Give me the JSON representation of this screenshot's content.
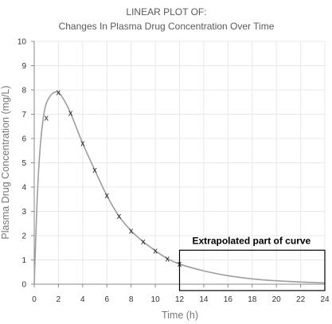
{
  "chart_data": {
    "type": "line",
    "title": "LINEAR PLOT OF:",
    "subtitle": "Changes In Plasma Drug Concentration Over Time",
    "xlabel": "Time (h)",
    "ylabel": "Plasma Drug Concentration (mg/L)",
    "xlim": [
      0,
      24
    ],
    "ylim": [
      0,
      10
    ],
    "xticks": [
      0,
      2,
      4,
      6,
      8,
      10,
      12,
      14,
      16,
      18,
      20,
      22,
      24
    ],
    "yticks": [
      0,
      1,
      2,
      3,
      4,
      5,
      6,
      7,
      8,
      9,
      10
    ],
    "grid": true,
    "series": [
      {
        "kind": "observed",
        "marker": "x",
        "x": [
          1,
          2,
          3,
          4,
          5,
          6,
          7,
          8,
          9,
          10,
          11,
          12
        ],
        "y": [
          6.85,
          7.9,
          7.05,
          5.8,
          4.7,
          3.65,
          2.8,
          2.2,
          1.75,
          1.38,
          1.05,
          0.83
        ]
      },
      {
        "kind": "fitted-curve",
        "x": [
          0,
          0.25,
          0.5,
          0.75,
          1,
          1.5,
          2,
          2.5,
          3,
          4,
          5,
          6,
          7,
          8,
          9,
          10,
          11,
          12,
          14,
          16,
          18,
          20,
          22,
          24
        ],
        "y": [
          0,
          3.6,
          5.7,
          6.85,
          7.45,
          7.85,
          7.9,
          7.55,
          7.05,
          5.8,
          4.7,
          3.65,
          2.8,
          2.2,
          1.75,
          1.38,
          1.05,
          0.83,
          0.55,
          0.35,
          0.22,
          0.14,
          0.09,
          0.05
        ]
      }
    ],
    "annotations": [
      {
        "text": "Extrapolated part of curve",
        "x_from": 12,
        "x_to": 24,
        "y_from": 0,
        "y_to": 1.4
      }
    ],
    "colors": {
      "line": "#9e9e9e",
      "marker": "#222222",
      "grid": "#e8e8e8",
      "axis": "#8a8a8a",
      "annotation_box": "#000000"
    }
  }
}
